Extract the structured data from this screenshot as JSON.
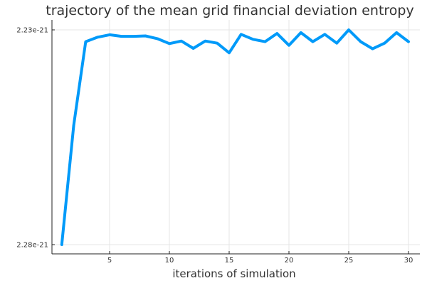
{
  "chart_data": {
    "type": "line",
    "title": "trajectory of the mean grid financial deviation entropy",
    "xlabel": "iterations of simulation",
    "ylabel": "",
    "x_ticks": [
      5,
      10,
      15,
      20,
      25,
      30
    ],
    "y_tick_labels": [
      "2.23e-21",
      "2.28e-21"
    ],
    "grid": true,
    "legend": "none",
    "series_color": "#009af9",
    "x": [
      1,
      2,
      3,
      4,
      5,
      6,
      7,
      8,
      9,
      10,
      11,
      12,
      13,
      14,
      15,
      16,
      17,
      18,
      19,
      20,
      21,
      22,
      23,
      24,
      25,
      26,
      27,
      28,
      29,
      30
    ],
    "y_normalized": [
      0.0,
      0.556,
      0.945,
      0.966,
      0.977,
      0.97,
      0.97,
      0.972,
      0.959,
      0.936,
      0.948,
      0.914,
      0.948,
      0.938,
      0.893,
      0.979,
      0.956,
      0.945,
      0.983,
      0.928,
      0.987,
      0.945,
      0.979,
      0.938,
      1.0,
      0.945,
      0.912,
      0.938,
      0.987,
      0.945
    ]
  }
}
